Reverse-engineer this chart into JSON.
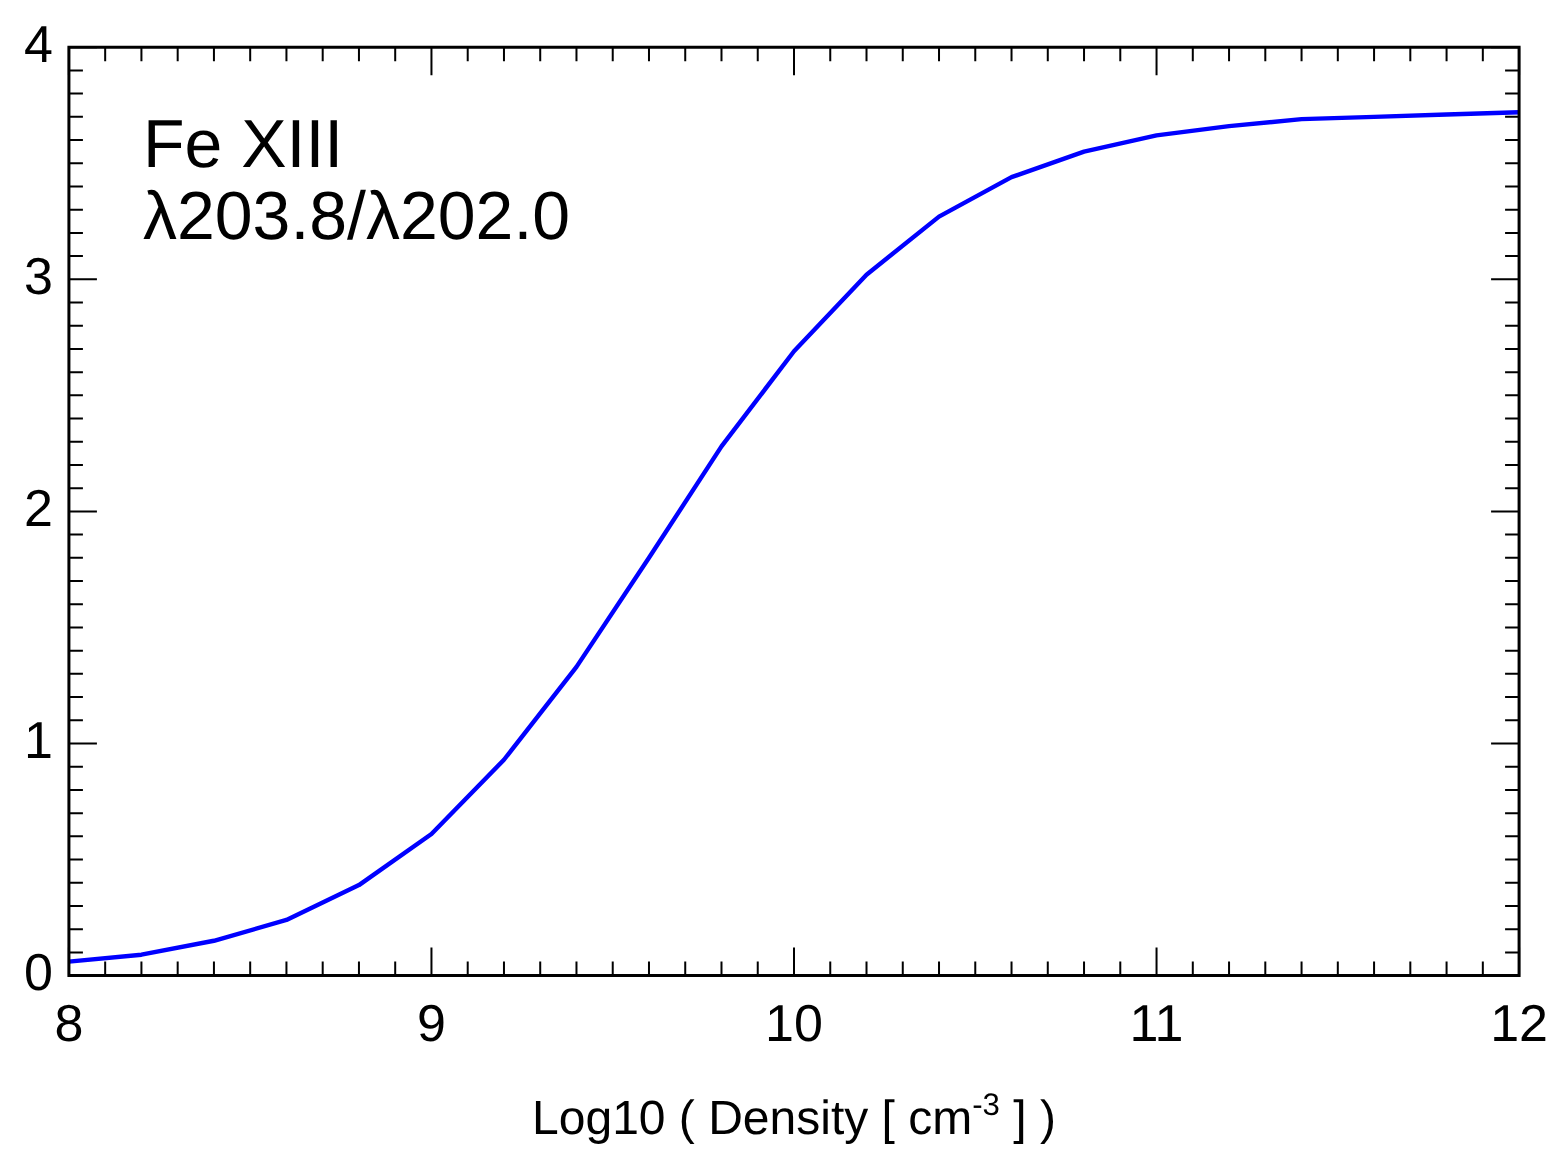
{
  "chart_data": {
    "type": "line",
    "xlabel": "Log10 ( Density [ cm$^{-3}$ ] )",
    "annotations": [
      "Fe XIII",
      "λ203.8/λ202.0"
    ],
    "x": [
      8.0,
      8.2,
      8.4,
      8.6,
      8.8,
      9.0,
      9.2,
      9.4,
      9.6,
      9.8,
      10.0,
      10.2,
      10.4,
      10.6,
      10.8,
      11.0,
      11.2,
      11.4,
      11.6,
      11.8,
      12.0
    ],
    "series": [
      {
        "color": "#0000ff",
        "values": [
          0.06,
          0.09,
          0.15,
          0.24,
          0.39,
          0.61,
          0.93,
          1.33,
          1.8,
          2.28,
          2.69,
          3.02,
          3.27,
          3.44,
          3.55,
          3.62,
          3.66,
          3.69,
          3.7,
          3.71,
          3.72
        ]
      }
    ],
    "xlim": [
      8,
      12
    ],
    "xticks": [
      8,
      9,
      10,
      11,
      12
    ],
    "ylim": [
      0,
      4
    ],
    "yticks": [
      0,
      1,
      2,
      3,
      4
    ],
    "grid": false,
    "legend": false,
    "marker": "none",
    "line_style": "solid"
  }
}
